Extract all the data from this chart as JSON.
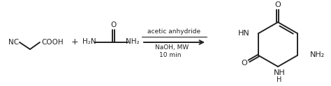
{
  "bg_color": "#ffffff",
  "line_color": "#222222",
  "text_color": "#222222",
  "figsize": [
    4.74,
    1.24
  ],
  "dpi": 100,
  "arrow_label1": "acetic anhydride",
  "arrow_label2": "NaOH, MW",
  "arrow_label3": "10 min",
  "plus_sign": "+",
  "r1_nc": "NC",
  "r1_cooh": "COOH",
  "r2_h2n": "H₂N",
  "r2_nh2": "NH₂",
  "urea_o": "O",
  "prod_hn": "HN",
  "prod_nh": "NH",
  "prod_h": "H",
  "prod_nh2": "NH₂",
  "prod_o_top": "O",
  "prod_o_bot": "O"
}
